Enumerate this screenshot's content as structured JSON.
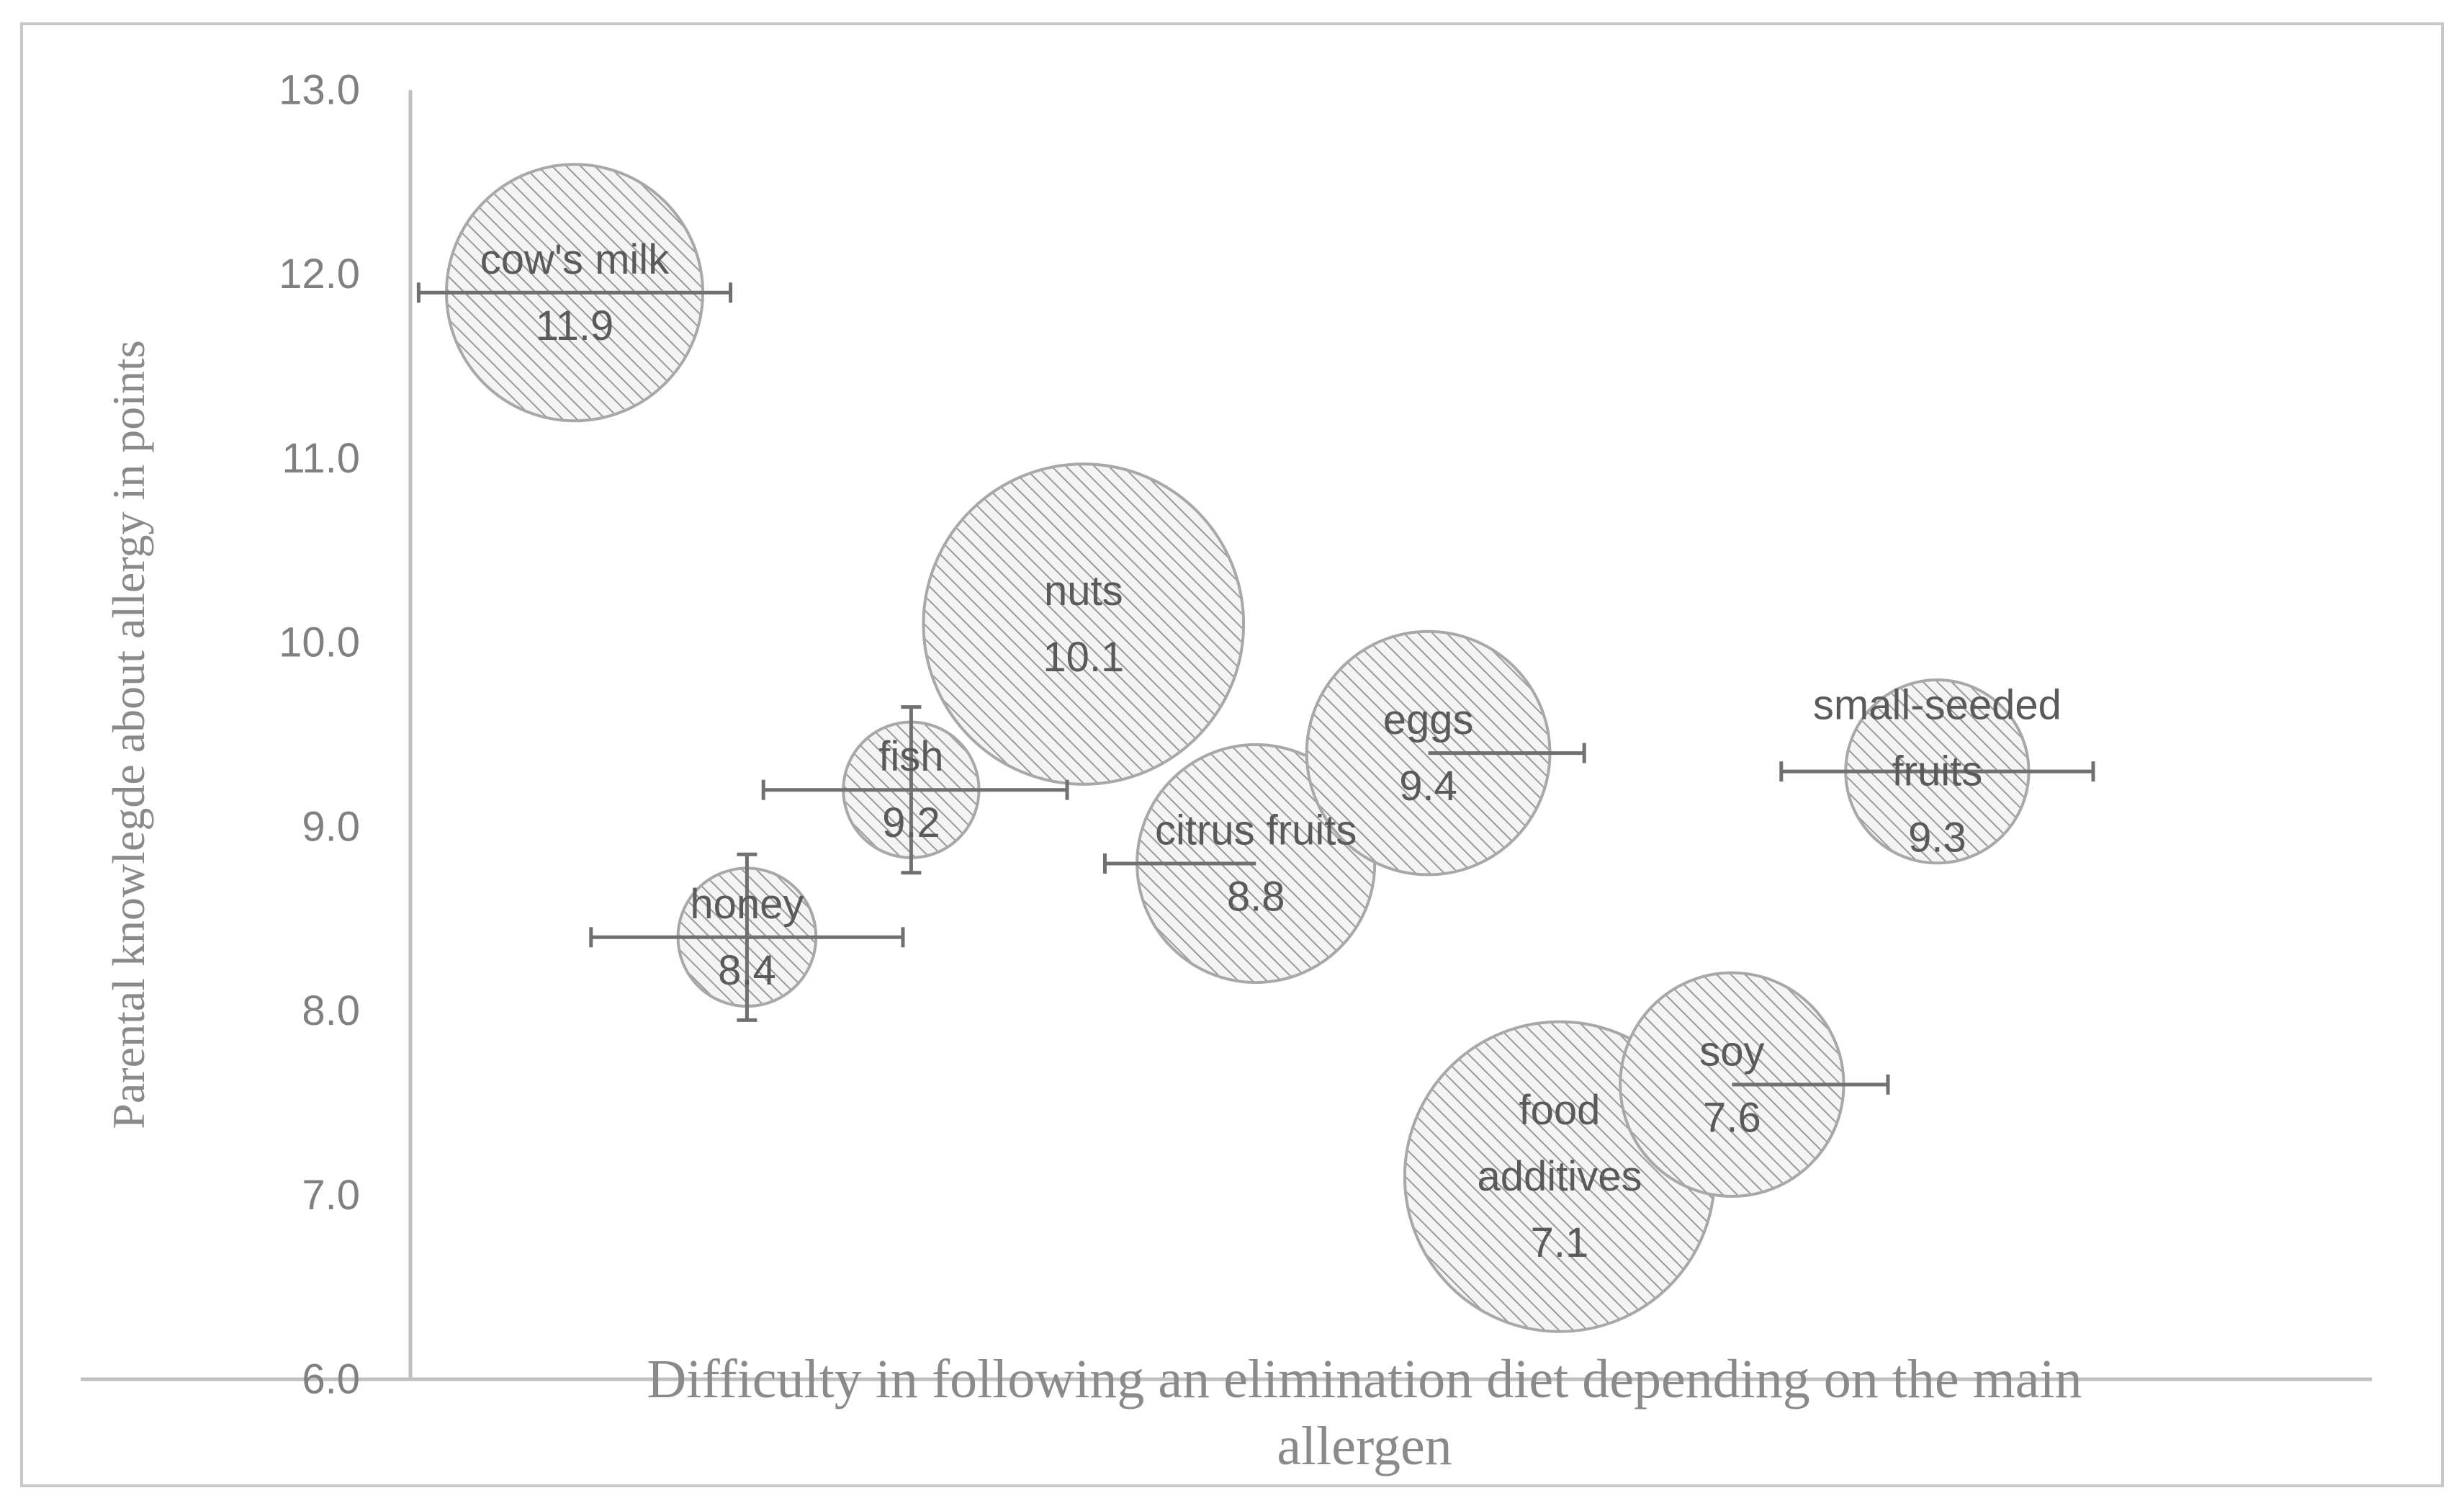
{
  "chart_data": {
    "type": "bubble",
    "title": "",
    "xlabel_lines": [
      "Difficulty in following an elimination diet depending on the main",
      "allergen"
    ],
    "ylabel": "Parental knowlegde about allergy in points",
    "ylim": [
      6.0,
      13.0
    ],
    "yticks": [
      "6.0",
      "7.0",
      "8.0",
      "9.0",
      "10.0",
      "11.0",
      "12.0",
      "13.0"
    ],
    "points": [
      {
        "name": "cow's milk",
        "label_lines": [
          "cow's milk"
        ],
        "value_label": "11.9",
        "x": 1.0,
        "y": 11.9,
        "size": 1.0,
        "x_err": [
          0.95,
          0.95
        ],
        "y_err": null
      },
      {
        "name": "nuts",
        "label_lines": [
          "nuts"
        ],
        "value_label": "10.1",
        "x": 4.1,
        "y": 10.1,
        "size": 1.56,
        "x_err": null,
        "y_err": null
      },
      {
        "name": "fish",
        "label_lines": [
          "fish"
        ],
        "value_label": "9.2",
        "x": 3.05,
        "y": 9.2,
        "size": 0.28,
        "x_err": [
          0.9,
          0.95
        ],
        "y_err": [
          0.45,
          0.45
        ]
      },
      {
        "name": "honey",
        "label_lines": [
          "honey"
        ],
        "value_label": "8.4",
        "x": 2.05,
        "y": 8.4,
        "size": 0.29,
        "x_err": [
          0.95,
          0.95
        ],
        "y_err": [
          0.45,
          0.45
        ]
      },
      {
        "name": "citrus fruits",
        "label_lines": [
          "citrus fruits"
        ],
        "value_label": "8.8",
        "x": 5.15,
        "y": 8.8,
        "size": 0.86,
        "x_err": [
          0.92,
          0.0
        ],
        "y_err": null
      },
      {
        "name": "eggs",
        "label_lines": [
          "eggs"
        ],
        "value_label": "9.4",
        "x": 6.2,
        "y": 9.4,
        "size": 0.9,
        "x_err": [
          0.0,
          0.95
        ],
        "y_err": null
      },
      {
        "name": "small-seeded fruits",
        "label_lines": [
          "small-seeded",
          "fruits"
        ],
        "value_label": "9.3",
        "x": 9.3,
        "y": 9.3,
        "size": 0.51,
        "x_err": [
          0.95,
          0.95
        ],
        "y_err": null
      },
      {
        "name": "food additives",
        "label_lines": [
          "food",
          "additives"
        ],
        "value_label": "7.1",
        "x": 7.0,
        "y": 7.1,
        "size": 1.46,
        "x_err": null,
        "y_err": null
      },
      {
        "name": "soy",
        "label_lines": [
          "soy"
        ],
        "value_label": "7.6",
        "x": 8.05,
        "y": 7.6,
        "size": 0.76,
        "x_err": [
          0.0,
          0.95
        ],
        "y_err": null
      }
    ],
    "grid": false,
    "legend": "none"
  },
  "colors": {
    "bubble_stroke": "#a8a8a8",
    "hatch_line": "#9a9a9a",
    "axis": "#c0c0c0",
    "text": "#808080"
  }
}
